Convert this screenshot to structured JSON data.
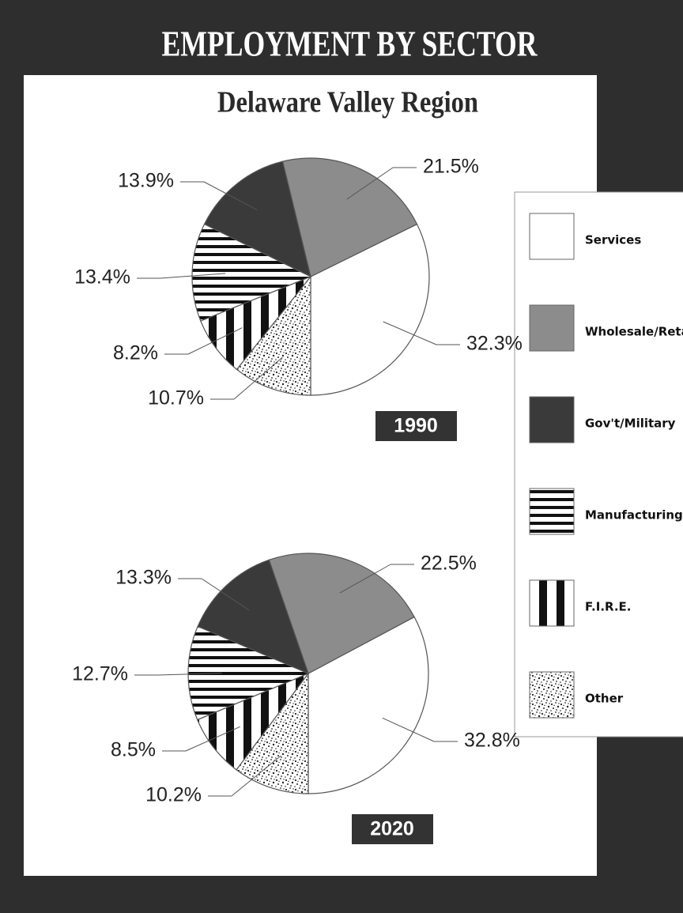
{
  "title": "EMPLOYMENT BY SECTOR",
  "subtitle": "Delaware Valley Region",
  "categories": [
    "Services",
    "Wholesale/Retail",
    "Gov't/Military",
    "Manufacturing",
    "F.I.R.E.",
    "Other"
  ],
  "colors": [
    "#ffffff",
    "#8c8c8c",
    "#3a3a3a",
    "hstripe",
    "vstripe",
    "speckle"
  ],
  "chart_data": [
    {
      "type": "pie",
      "title": "1990",
      "values": [
        32.3,
        21.5,
        13.9,
        13.4,
        8.2,
        10.7
      ],
      "value_labels": [
        "32.3%",
        "21.5%",
        "13.9%",
        "13.4%",
        "8.2%",
        "10.7%"
      ]
    },
    {
      "type": "pie",
      "title": "2020",
      "values": [
        32.8,
        22.5,
        13.3,
        12.7,
        8.5,
        10.2
      ],
      "value_labels": [
        "32.8%",
        "22.5%",
        "13.3%",
        "12.7%",
        "8.5%",
        "10.2%"
      ]
    }
  ]
}
